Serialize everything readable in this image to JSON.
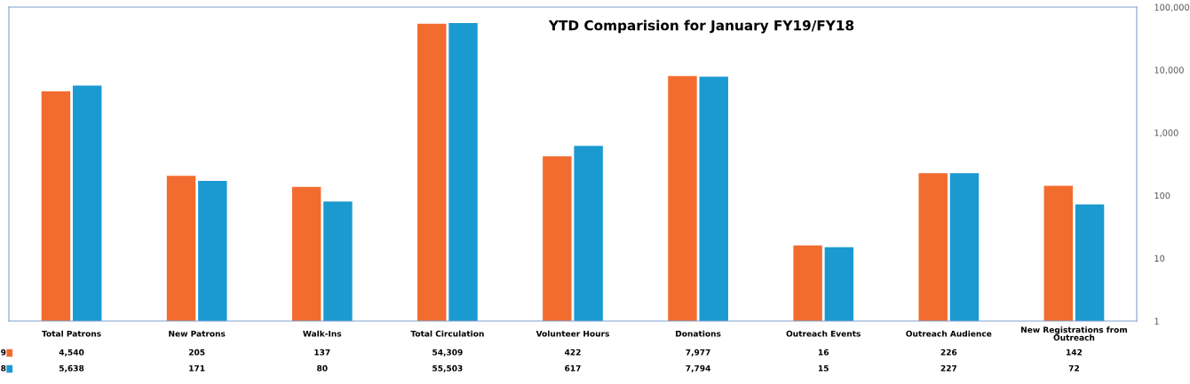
{
  "chart_data": {
    "type": "bar",
    "title": "YTD Comparision for January FY19/FY18",
    "categories": [
      "Total Patrons",
      "New Patrons",
      "Walk-Ins",
      "Total Circulation",
      "Volunteer Hours",
      "Donations",
      "Outreach Events",
      "Outreach Audience",
      "New Registrations from Outreach"
    ],
    "series": [
      {
        "name": "9",
        "color": "#f26c2f",
        "values": [
          4540,
          205,
          137,
          54309,
          422,
          7977,
          16,
          226,
          142
        ],
        "value_labels": [
          "4,540",
          "205",
          "137",
          "54,309",
          "422",
          "7,977",
          "16",
          "226",
          "142"
        ]
      },
      {
        "name": "8",
        "color": "#1a9ad0",
        "values": [
          5638,
          171,
          80,
          55503,
          617,
          7794,
          15,
          227,
          72
        ],
        "value_labels": [
          "5,638",
          "171",
          "80",
          "55,503",
          "617",
          "7,794",
          "15",
          "227",
          "72"
        ]
      }
    ],
    "log": true,
    "ylim": [
      1,
      100000
    ],
    "yticks": [
      1,
      10,
      100,
      {
        "value": 1000,
        "label": "1,000"
      },
      {
        "value": 10000,
        "label": "10,000"
      },
      {
        "value": 100000,
        "label": "100,000"
      }
    ],
    "data_labels": true,
    "grid": false,
    "legend": "bottom left"
  }
}
